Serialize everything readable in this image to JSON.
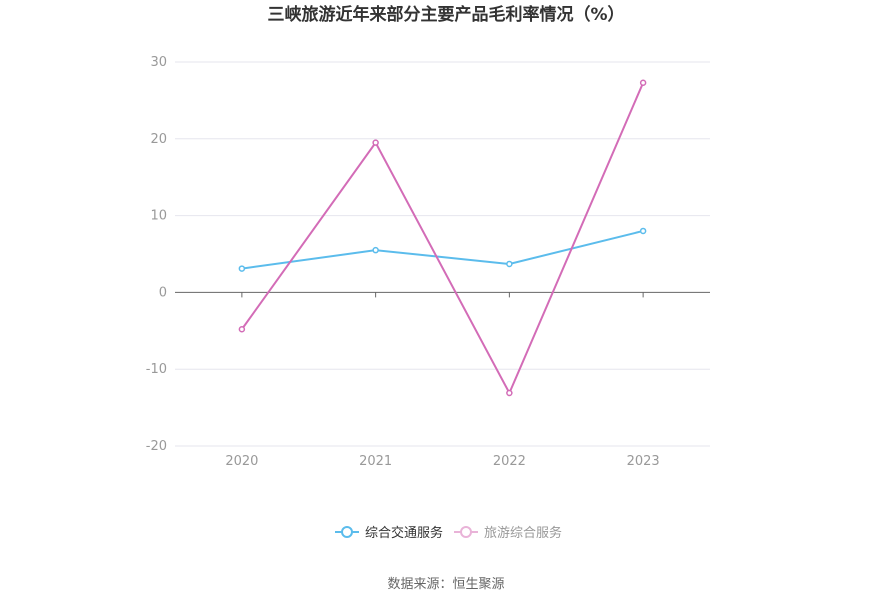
{
  "title": "三峡旅游近年来部分主要产品毛利率情况（%）",
  "source": "数据来源：恒生聚源",
  "chart_data": {
    "type": "line",
    "title": "三峡旅游近年来部分主要产品毛利率情况（%）",
    "x": [
      "2020",
      "2021",
      "2022",
      "2023"
    ],
    "ylim": [
      -20,
      30
    ],
    "yticks": [
      30,
      20,
      10,
      0,
      -10,
      -20
    ],
    "grid": true,
    "legend_position": "bottom",
    "series": [
      {
        "name": "综合交通服务",
        "color": "#5bbcec",
        "values": [
          3.1,
          5.5,
          3.7,
          8.0
        ]
      },
      {
        "name": "旅游综合服务",
        "color": "#d36cb7",
        "values": [
          -4.8,
          19.5,
          -13.1,
          27.3
        ]
      }
    ]
  }
}
